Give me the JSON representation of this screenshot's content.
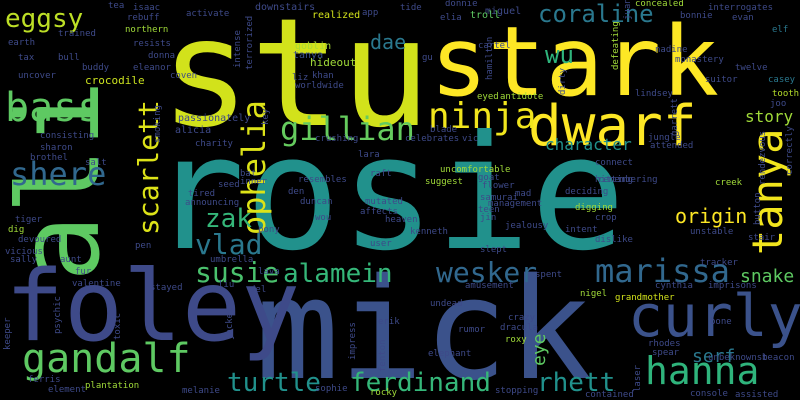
{
  "words": [
    {
      "text": "stu",
      "color": "#d2e21b"
    },
    {
      "text": "stark",
      "color": "#fde725"
    },
    {
      "text": "rosie",
      "color": "#21918c"
    },
    {
      "text": "ali",
      "color": "#5ec962"
    },
    {
      "text": "mick",
      "color": "#3b528b"
    },
    {
      "text": "foley",
      "color": "#3e4a89"
    },
    {
      "text": "dwarf",
      "color": "#fde725"
    },
    {
      "text": "ninja",
      "color": "#f1e51d"
    },
    {
      "text": "bass",
      "color": "#5ec962"
    },
    {
      "text": "curly",
      "color": "#3b528b"
    },
    {
      "text": "tanya",
      "color": "#f1e51d"
    },
    {
      "text": "hanna",
      "color": "#2fb47c"
    },
    {
      "text": "gandalf",
      "color": "#5ec962"
    },
    {
      "text": "gillian",
      "color": "#65cb5e"
    },
    {
      "text": "ophelia",
      "color": "#dde318"
    },
    {
      "text": "scarlett",
      "color": "#dde318"
    },
    {
      "text": "shere",
      "color": "#31688e"
    },
    {
      "text": "marissa",
      "color": "#31688e"
    },
    {
      "text": "alamein",
      "color": "#35b779"
    },
    {
      "text": "wesker",
      "color": "#31688e"
    },
    {
      "text": "susie",
      "color": "#4ac16d"
    },
    {
      "text": "vlad",
      "color": "#2a788e"
    },
    {
      "text": "zak",
      "color": "#35b779"
    },
    {
      "text": "ferdinand",
      "color": "#35b779"
    },
    {
      "text": "turtle",
      "color": "#21918c"
    },
    {
      "text": "rhett",
      "color": "#21918c"
    },
    {
      "text": "coraline",
      "color": "#2a788e"
    },
    {
      "text": "eggsy",
      "color": "#bddf26"
    },
    {
      "text": "wu",
      "color": "#2fb47c"
    },
    {
      "text": "dae",
      "color": "#2a788e"
    },
    {
      "text": "origin",
      "color": "#fde725"
    },
    {
      "text": "story",
      "color": "#a0da39"
    },
    {
      "text": "snake",
      "color": "#5ec962"
    },
    {
      "text": "serf",
      "color": "#2a788e"
    },
    {
      "text": "character",
      "color": "#21918c"
    },
    {
      "text": "eye",
      "color": "#5ec962"
    },
    {
      "text": "crocodile",
      "color": "#cae11f"
    },
    {
      "text": "goblin",
      "color": "#a8db34"
    },
    {
      "text": "tanya",
      "color": "#3b528b"
    },
    {
      "text": "hideout",
      "color": "#a0da39"
    },
    {
      "text": "realized",
      "color": "#d2e21b"
    },
    {
      "text": "passionately",
      "color": "#3e4a89"
    },
    {
      "text": "alicia",
      "color": "#3e4a89"
    },
    {
      "text": "smoking",
      "color": "#3e4a89"
    },
    {
      "text": "eyed",
      "color": "#a0da39"
    },
    {
      "text": "antidote",
      "color": "#a0da39"
    },
    {
      "text": "downstairs",
      "color": "#3e4a89"
    },
    {
      "text": "miguel",
      "color": "#3e4a89"
    },
    {
      "text": "troll",
      "color": "#5ec962"
    },
    {
      "text": "concealed",
      "color": "#a0da39"
    },
    {
      "text": "interrogates",
      "color": "#3e4a89"
    },
    {
      "text": "evan",
      "color": "#3e4a89"
    },
    {
      "text": "elf",
      "color": "#2a788e"
    },
    {
      "text": "bonnie",
      "color": "#3e4a89"
    },
    {
      "text": "nadine",
      "color": "#3e4a89"
    },
    {
      "text": "twelve",
      "color": "#3e4a89"
    },
    {
      "text": "casey",
      "color": "#2a788e"
    },
    {
      "text": "tooth",
      "color": "#b5de2b"
    },
    {
      "text": "joo",
      "color": "#3e4a89"
    },
    {
      "text": "suitor",
      "color": "#3e4a89"
    },
    {
      "text": "lindsey",
      "color": "#3e4a89"
    },
    {
      "text": "jungle",
      "color": "#3e4a89"
    },
    {
      "text": "garrett",
      "color": "#3e4a89"
    },
    {
      "text": "connect",
      "color": "#3e4a89"
    },
    {
      "text": "attended",
      "color": "#3e4a89"
    },
    {
      "text": "rendezvous",
      "color": "#3e4a89"
    },
    {
      "text": "correctly",
      "color": "#3e4a89"
    },
    {
      "text": "creek",
      "color": "#a0da39"
    },
    {
      "text": "stair",
      "color": "#3e4a89"
    },
    {
      "text": "unstable",
      "color": "#3e4a89"
    },
    {
      "text": "tracker",
      "color": "#3e4a89"
    },
    {
      "text": "dislike",
      "color": "#3e4a89"
    },
    {
      "text": "hitting",
      "color": "#3e4a89"
    },
    {
      "text": "deciding",
      "color": "#3e4a89"
    },
    {
      "text": "digging",
      "color": "#a0da39"
    },
    {
      "text": "crop",
      "color": "#3e4a89"
    },
    {
      "text": "intent",
      "color": "#3e4a89"
    },
    {
      "text": "jealousy",
      "color": "#3e4a89"
    },
    {
      "text": "slept",
      "color": "#3e4a89"
    },
    {
      "text": "jin",
      "color": "#3e4a89"
    },
    {
      "text": "teen",
      "color": "#3e4a89"
    },
    {
      "text": "management",
      "color": "#3e4a89"
    },
    {
      "text": "samurai",
      "color": "#3e4a89"
    },
    {
      "text": "mad",
      "color": "#3e4a89"
    },
    {
      "text": "flower",
      "color": "#3e4a89"
    },
    {
      "text": "goat",
      "color": "#3e4a89"
    },
    {
      "text": "uncomfortable",
      "color": "#a0da39"
    },
    {
      "text": "suggest",
      "color": "#a0da39"
    },
    {
      "text": "raft",
      "color": "#3e4a89"
    },
    {
      "text": "lara",
      "color": "#3e4a89"
    },
    {
      "text": "celebrates",
      "color": "#3e4a89"
    },
    {
      "text": "blade",
      "color": "#3e4a89"
    },
    {
      "text": "vic",
      "color": "#3e4a89"
    },
    {
      "text": "crushing",
      "color": "#3e4a89"
    },
    {
      "text": "charity",
      "color": "#3e4a89"
    },
    {
      "text": "tired",
      "color": "#3e4a89"
    },
    {
      "text": "announcing",
      "color": "#3e4a89"
    },
    {
      "text": "seed",
      "color": "#3e4a89"
    },
    {
      "text": "bat",
      "color": "#3e4a89"
    },
    {
      "text": "inner",
      "color": "#3e4a89"
    },
    {
      "text": "den",
      "color": "#3e4a89"
    },
    {
      "text": "resembles",
      "color": "#3e4a89"
    },
    {
      "text": "duncan",
      "color": "#3e4a89"
    },
    {
      "text": "mutated",
      "color": "#3e4a89"
    },
    {
      "text": "affects",
      "color": "#3e4a89"
    },
    {
      "text": "heaven",
      "color": "#3e4a89"
    },
    {
      "text": "kenneth",
      "color": "#3e4a89"
    },
    {
      "text": "wou",
      "color": "#3e4a89"
    },
    {
      "text": "pony",
      "color": "#3e4a89"
    },
    {
      "text": "umbrella",
      "color": "#3e4a89"
    },
    {
      "text": "lava",
      "color": "#3e4a89"
    },
    {
      "text": "user",
      "color": "#3e4a89"
    },
    {
      "text": "pen",
      "color": "#3e4a89"
    },
    {
      "text": "spent",
      "color": "#3e4a89"
    },
    {
      "text": "nigel",
      "color": "#a0da39"
    },
    {
      "text": "grandmother",
      "color": "#d2e21b"
    },
    {
      "text": "cynthia",
      "color": "#3e4a89"
    },
    {
      "text": "imprisons",
      "color": "#3e4a89"
    },
    {
      "text": "undead",
      "color": "#3e4a89"
    },
    {
      "text": "amusement",
      "color": "#3e4a89"
    },
    {
      "text": "crazy",
      "color": "#3e4a89"
    },
    {
      "text": "erik",
      "color": "#3e4a89"
    },
    {
      "text": "rumor",
      "color": "#3e4a89"
    },
    {
      "text": "dracula",
      "color": "#3e4a89"
    },
    {
      "text": "roxy",
      "color": "#a0da39"
    },
    {
      "text": "elephant",
      "color": "#3e4a89"
    },
    {
      "text": "fenton",
      "color": "#3e4a89"
    },
    {
      "text": "impress",
      "color": "#3e4a89"
    },
    {
      "text": "spear",
      "color": "#3e4a89"
    },
    {
      "text": "rhodes",
      "color": "#3e4a89"
    },
    {
      "text": "bone",
      "color": "#3e4a89"
    },
    {
      "text": "unbeknownst",
      "color": "#3e4a89"
    },
    {
      "text": "beacon",
      "color": "#3e4a89"
    },
    {
      "text": "laser",
      "color": "#3e4a89"
    },
    {
      "text": "contained",
      "color": "#3e4a89"
    },
    {
      "text": "console",
      "color": "#3e4a89"
    },
    {
      "text": "assisted",
      "color": "#3e4a89"
    },
    {
      "text": "stopping",
      "color": "#3e4a89"
    },
    {
      "text": "rocky",
      "color": "#a0da39"
    },
    {
      "text": "sophie",
      "color": "#3e4a89"
    },
    {
      "text": "melanie",
      "color": "#3e4a89"
    },
    {
      "text": "element",
      "color": "#3e4a89"
    },
    {
      "text": "plantation",
      "color": "#a0da39"
    },
    {
      "text": "ferris",
      "color": "#3e4a89"
    },
    {
      "text": "keeper",
      "color": "#3e4a89"
    },
    {
      "text": "psychic",
      "color": "#3e4a89"
    },
    {
      "text": "toxic",
      "color": "#3e4a89"
    },
    {
      "text": "jacket",
      "color": "#3e4a89"
    },
    {
      "text": "valentine",
      "color": "#3e4a89"
    },
    {
      "text": "fur",
      "color": "#3e4a89"
    },
    {
      "text": "aunt",
      "color": "#3e4a89"
    },
    {
      "text": "sally",
      "color": "#3e4a89"
    },
    {
      "text": "vicious",
      "color": "#3e4a89"
    },
    {
      "text": "devoured",
      "color": "#3e4a89"
    },
    {
      "text": "dig",
      "color": "#a0da39"
    },
    {
      "text": "tiger",
      "color": "#3e4a89"
    },
    {
      "text": "brothel",
      "color": "#3e4a89"
    },
    {
      "text": "sharon",
      "color": "#3e4a89"
    },
    {
      "text": "salt",
      "color": "#3e4a89"
    },
    {
      "text": "consisting",
      "color": "#3e4a89"
    },
    {
      "text": "uncover",
      "color": "#3e4a89"
    },
    {
      "text": "tax",
      "color": "#3e4a89"
    },
    {
      "text": "bull",
      "color": "#3e4a89"
    },
    {
      "text": "buddy",
      "color": "#3e4a89"
    },
    {
      "text": "earth",
      "color": "#3e4a89"
    },
    {
      "text": "trained",
      "color": "#3e4a89"
    },
    {
      "text": "tea",
      "color": "#3e4a89"
    },
    {
      "text": "isaac",
      "color": "#3e4a89"
    },
    {
      "text": "rebuff",
      "color": "#3e4a89"
    },
    {
      "text": "northern",
      "color": "#a0da39"
    },
    {
      "text": "activate",
      "color": "#3e4a89"
    },
    {
      "text": "resists",
      "color": "#3e4a89"
    },
    {
      "text": "donna",
      "color": "#3e4a89"
    },
    {
      "text": "eleanor",
      "color": "#3e4a89"
    },
    {
      "text": "coven",
      "color": "#3e4a89"
    },
    {
      "text": "intense",
      "color": "#3e4a89"
    },
    {
      "text": "terrorized",
      "color": "#3e4a89"
    },
    {
      "text": "liz",
      "color": "#3e4a89"
    },
    {
      "text": "khan",
      "color": "#3e4a89"
    },
    {
      "text": "worldwide",
      "color": "#3e4a89"
    },
    {
      "text": "app",
      "color": "#3e4a89"
    },
    {
      "text": "tide",
      "color": "#3e4a89"
    },
    {
      "text": "elia",
      "color": "#3e4a89"
    },
    {
      "text": "donnie",
      "color": "#3e4a89"
    },
    {
      "text": "defeating",
      "color": "#a0da39"
    },
    {
      "text": "juan",
      "color": "#3e4a89"
    },
    {
      "text": "cartel",
      "color": "#3e4a89"
    },
    {
      "text": "gu",
      "color": "#3e4a89"
    },
    {
      "text": "hamilton",
      "color": "#3e4a89"
    },
    {
      "text": "dirty",
      "color": "#3e4a89"
    },
    {
      "text": "monastery",
      "color": "#3e4a89"
    },
    {
      "text": "button",
      "color": "#3e4a89"
    },
    {
      "text": "liu",
      "color": "#3e4a89"
    },
    {
      "text": "del",
      "color": "#3e4a89"
    },
    {
      "text": "stayed",
      "color": "#3e4a89"
    },
    {
      "text": "remembering",
      "color": "#3e4a89"
    },
    {
      "text": "key",
      "color": "#3e4a89"
    }
  ]
}
